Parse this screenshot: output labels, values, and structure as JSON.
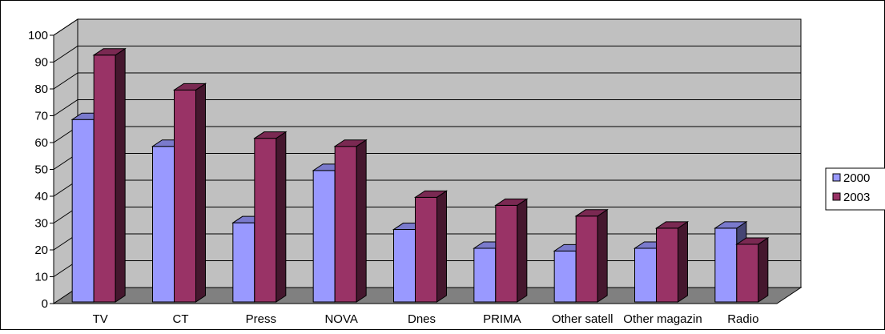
{
  "chart_data": {
    "type": "bar",
    "style": "3d-clustered-column",
    "categories": [
      "TV",
      "CT",
      "Press",
      "NOVA",
      "Dnes",
      "PRIMA",
      "Other satell",
      "Other magazin",
      "Radio"
    ],
    "series": [
      {
        "name": "2000",
        "color": "#9999ff",
        "values": [
          68,
          58,
          29.5,
          49,
          27,
          20,
          19,
          20,
          27.5
        ]
      },
      {
        "name": "2003",
        "color": "#993366",
        "values": [
          92,
          79,
          61,
          58,
          39,
          36,
          32,
          27.5,
          21.5
        ]
      }
    ],
    "yticks": [
      "0",
      "10",
      "20",
      "30",
      "40",
      "50",
      "60",
      "70",
      "80",
      "90",
      "100"
    ],
    "ylim": [
      0,
      100
    ],
    "grid": true,
    "legend_position": "right",
    "wall_color": "#c0c0c0",
    "floor_color": "#808080"
  }
}
